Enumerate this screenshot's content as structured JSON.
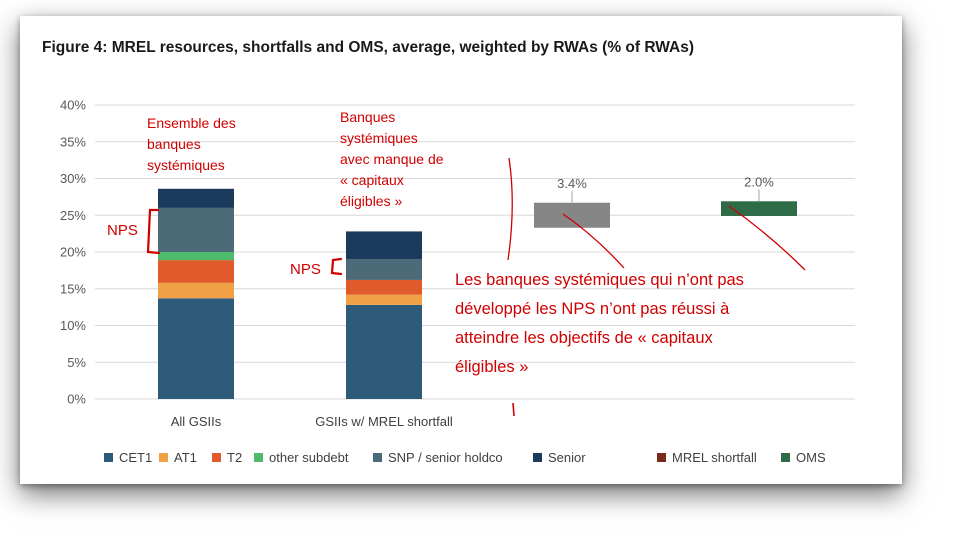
{
  "chart_data": {
    "type": "bar",
    "title": "Figure 4: MREL resources, shortfalls and OMS, average, weighted by RWAs (% of RWAs)",
    "ylim": [
      0,
      40
    ],
    "yticks": [
      "0%",
      "5%",
      "10%",
      "15%",
      "20%",
      "25%",
      "30%",
      "35%",
      "40%"
    ],
    "grid": true,
    "categories": [
      "All GSIIs",
      "GSIIs w/ MREL shortfall"
    ],
    "stacked_series": [
      {
        "name": "CET1",
        "color": "#2e5a7a",
        "values": [
          13.7,
          12.8
        ]
      },
      {
        "name": "AT1",
        "color": "#f0a045",
        "values": [
          2.1,
          1.4
        ]
      },
      {
        "name": "T2",
        "color": "#e05a2b",
        "values": [
          3.1,
          2.0
        ]
      },
      {
        "name": "other subdebt",
        "color": "#4dbb6b",
        "values": [
          1.1,
          0.0
        ]
      },
      {
        "name": "SNP / senior holdco",
        "color": "#4d6a78",
        "values": [
          6.0,
          2.8
        ]
      },
      {
        "name": "Senior",
        "color": "#1c3a5c",
        "values": [
          2.6,
          3.8
        ]
      }
    ],
    "floating_bars": [
      {
        "series": "MREL shortfall",
        "color": "#868686",
        "bottom": 23.3,
        "top": 26.7,
        "label": "3.4%"
      },
      {
        "series": "OMS",
        "color": "#2e6b47",
        "bottom": 24.9,
        "top": 26.9,
        "label": "2.0%"
      }
    ],
    "legend": {
      "position": "bottom",
      "entries": [
        {
          "name": "CET1",
          "color": "#2e5a7a"
        },
        {
          "name": "AT1",
          "color": "#f0a045"
        },
        {
          "name": "T2",
          "color": "#e05a2b"
        },
        {
          "name": "other subdebt",
          "color": "#4dbb6b"
        },
        {
          "name": "SNP / senior holdco",
          "color": "#4d6a78"
        },
        {
          "name": "Senior",
          "color": "#1c3a5c"
        },
        {
          "name": "MREL shortfall",
          "color": "#7a2a1a"
        },
        {
          "name": "OMS",
          "color": "#2e6b47"
        }
      ]
    }
  },
  "annotations": {
    "all_gsiis_note": [
      "Ensemble des",
      "banques",
      "systémiques"
    ],
    "shortfall_note": [
      "Banques",
      "systémiques",
      "avec manque de",
      "« capitaux",
      "éligibles »"
    ],
    "nps_label": "NPS",
    "main_note": [
      "Les banques systémiques qui n’ont pas",
      "développé les NPS n’ont pas réussi à",
      "atteindre les objectifs de « capitaux",
      "éligibles »"
    ]
  },
  "colors": {
    "annotation_red": "#d00000",
    "grid": "#d9d9d9"
  }
}
